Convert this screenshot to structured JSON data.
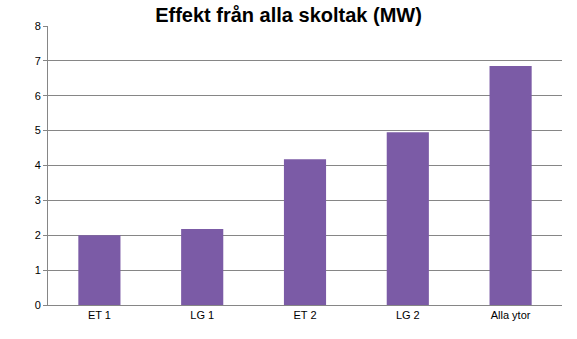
{
  "chart_data": {
    "type": "bar",
    "title": "Effekt från alla skoltak (MW)",
    "categories": [
      "ET 1",
      "LG 1",
      "ET 2",
      "LG 2",
      "Alla ytor"
    ],
    "values": [
      2.0,
      2.18,
      4.18,
      4.95,
      6.85
    ],
    "color": "#7b5ba6",
    "ylim": [
      0,
      8
    ],
    "yticks": [
      0,
      1,
      2,
      3,
      4,
      5,
      6,
      7,
      8
    ],
    "grid": true
  }
}
